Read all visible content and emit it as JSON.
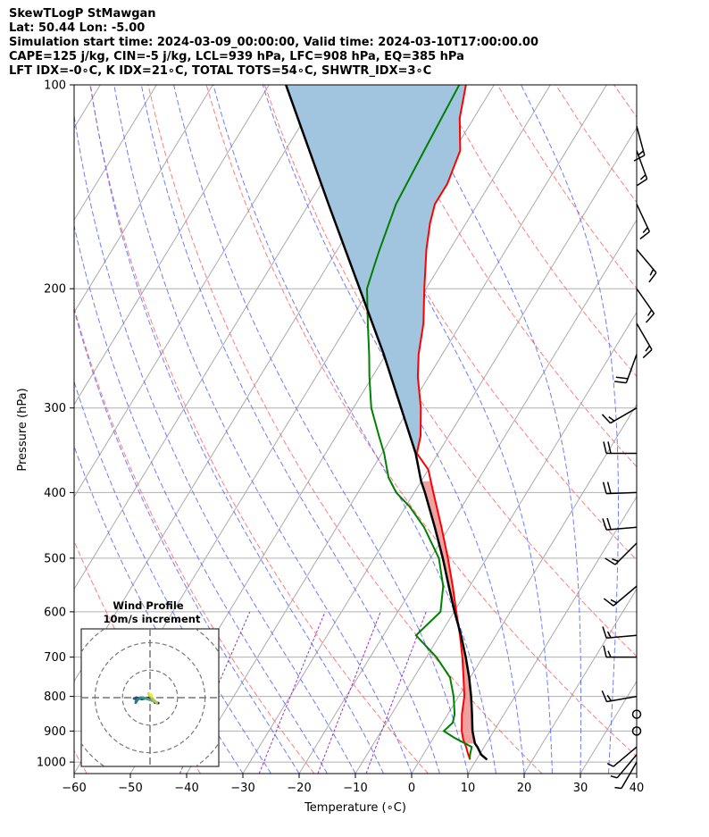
{
  "header": {
    "line1": "SkewTLogP StMawgan",
    "line2": "Lat: 50.44   Lon: -5.00",
    "line3": "Simulation start time: 2024-03-09_00:00:00, Valid time: 2024-03-10T17:00:00.00",
    "line4": "CAPE=125 j/kg, CIN=-5 j/kg, LCL=939 hPa, LFC=908 hPa, EQ=385 hPa",
    "line5": "LFT IDX=-0∘C, K IDX=21∘C, TOTAL TOTS=54∘C, SHWTR_IDX=3∘C"
  },
  "colors": {
    "temperature": "#ff0000",
    "dewpoint": "#008000",
    "parcel": "#000000",
    "cape_fill": "#a2c5df",
    "cin_fill": "#f0a0a0",
    "dry_adiabat": "#ff6666",
    "moist_adiabat": "#5566ff",
    "mixing_ratio": "#9933cc",
    "isotherm": "#aaaaaa"
  },
  "chart_data": {
    "type": "line",
    "subtype": "skew-t log-p",
    "xlabel": "Temperature (∘C)",
    "ylabel": "Pressure (hPa)",
    "xlim": [
      -60,
      40
    ],
    "ylim": [
      1040,
      100
    ],
    "x_ticks": [
      "−60",
      "−50",
      "−40",
      "−30",
      "−20",
      "−10",
      "0",
      "10",
      "20",
      "30",
      "40"
    ],
    "y_ticks": [
      {
        "p": 1000,
        "label": "1000"
      },
      {
        "p": 900,
        "label": "900"
      },
      {
        "p": 800,
        "label": "800"
      },
      {
        "p": 700,
        "label": "700"
      },
      {
        "p": 600,
        "label": "600"
      },
      {
        "p": 500,
        "label": "500"
      },
      {
        "p": 400,
        "label": "400"
      },
      {
        "p": 300,
        "label": "300"
      },
      {
        "p": 200,
        "label": "200"
      },
      {
        "p": 100,
        "label": "100"
      }
    ],
    "series": [
      {
        "name": "Temperature",
        "points": [
          [
            992,
            8.9
          ],
          [
            975,
            8.0
          ],
          [
            950,
            6.8
          ],
          [
            925,
            5.4
          ],
          [
            900,
            4.3
          ],
          [
            850,
            2.5
          ],
          [
            800,
            1.0
          ],
          [
            750,
            -1.2
          ],
          [
            700,
            -3.6
          ],
          [
            650,
            -6.4
          ],
          [
            600,
            -9.6
          ],
          [
            550,
            -13.0
          ],
          [
            500,
            -16.9
          ],
          [
            450,
            -21.4
          ],
          [
            400,
            -26.6
          ],
          [
            370,
            -30.0
          ],
          [
            350,
            -33.8
          ],
          [
            330,
            -35.0
          ],
          [
            300,
            -38.0
          ],
          [
            270,
            -41.9
          ],
          [
            250,
            -44.2
          ],
          [
            225,
            -46.7
          ],
          [
            200,
            -50.3
          ],
          [
            175,
            -54.2
          ],
          [
            160,
            -56.4
          ],
          [
            150,
            -57.6
          ],
          [
            140,
            -57.6
          ],
          [
            125,
            -58.9
          ],
          [
            112,
            -62.5
          ],
          [
            100,
            -65.0
          ]
        ]
      },
      {
        "name": "Dewpoint",
        "points": [
          [
            990,
            8.7
          ],
          [
            970,
            8.2
          ],
          [
            950,
            7.8
          ],
          [
            920,
            3.6
          ],
          [
            900,
            1.1
          ],
          [
            875,
            1.8
          ],
          [
            850,
            1.2
          ],
          [
            800,
            -0.9
          ],
          [
            750,
            -3.6
          ],
          [
            700,
            -8.2
          ],
          [
            650,
            -14.2
          ],
          [
            600,
            -12.4
          ],
          [
            550,
            -14.7
          ],
          [
            500,
            -18.5
          ],
          [
            450,
            -24.5
          ],
          [
            420,
            -29.2
          ],
          [
            400,
            -33.2
          ],
          [
            380,
            -36.2
          ],
          [
            350,
            -39.6
          ],
          [
            330,
            -42.4
          ],
          [
            300,
            -46.8
          ],
          [
            270,
            -50.5
          ],
          [
            250,
            -53.0
          ],
          [
            225,
            -56.6
          ],
          [
            200,
            -60.5
          ],
          [
            185,
            -61.7
          ],
          [
            175,
            -62.5
          ],
          [
            150,
            -64.5
          ],
          [
            125,
            -65.3
          ],
          [
            100,
            -66.2
          ]
        ]
      },
      {
        "name": "Parcel",
        "points": [
          [
            992,
            11.9
          ],
          [
            975,
            10.3
          ],
          [
            950,
            8.8
          ],
          [
            939,
            8.0
          ],
          [
            900,
            6.2
          ],
          [
            850,
            4.3
          ],
          [
            800,
            2.2
          ],
          [
            750,
            -0.2
          ],
          [
            700,
            -3.0
          ],
          [
            650,
            -6.2
          ],
          [
            600,
            -9.9
          ],
          [
            550,
            -13.7
          ],
          [
            500,
            -17.8
          ],
          [
            450,
            -22.6
          ],
          [
            400,
            -28.1
          ],
          [
            385,
            -30.0
          ],
          [
            350,
            -34.0
          ],
          [
            300,
            -41.5
          ],
          [
            250,
            -50.4
          ],
          [
            200,
            -61.8
          ],
          [
            150,
            -76.5
          ],
          [
            100,
            -97.0
          ]
        ]
      }
    ],
    "cape_region": {
      "p_bottom": 908,
      "p_top": 385
    },
    "upper_cape_region": {
      "p_bottom": 350,
      "p_top": 100
    },
    "cin_region": {
      "p_bottom": 939,
      "p_top": 908
    },
    "wind_barbs": [
      {
        "p": 1000,
        "speed": 5,
        "dir": 210
      },
      {
        "p": 975,
        "speed": 5,
        "dir": 220
      },
      {
        "p": 950,
        "speed": 5,
        "dir": 230
      },
      {
        "p": 900,
        "speed": 0,
        "dir": 0
      },
      {
        "p": 850,
        "speed": 0,
        "dir": 0
      },
      {
        "p": 800,
        "speed": 15,
        "dir": 260
      },
      {
        "p": 700,
        "speed": 15,
        "dir": 270
      },
      {
        "p": 650,
        "speed": 15,
        "dir": 265
      },
      {
        "p": 550,
        "speed": 15,
        "dir": 230
      },
      {
        "p": 475,
        "speed": 15,
        "dir": 225
      },
      {
        "p": 450,
        "speed": 20,
        "dir": 265
      },
      {
        "p": 400,
        "speed": 20,
        "dir": 268
      },
      {
        "p": 350,
        "speed": 20,
        "dir": 270
      },
      {
        "p": 300,
        "speed": 15,
        "dir": 240
      },
      {
        "p": 250,
        "speed": 20,
        "dir": 200
      },
      {
        "p": 225,
        "speed": 15,
        "dir": 150
      },
      {
        "p": 200,
        "speed": 15,
        "dir": 145
      },
      {
        "p": 175,
        "speed": 15,
        "dir": 140
      },
      {
        "p": 150,
        "speed": 15,
        "dir": 155
      },
      {
        "p": 125,
        "speed": 15,
        "dir": 160
      },
      {
        "p": 115,
        "speed": 15,
        "dir": 165
      }
    ],
    "hodograph": {
      "title": "Wind Profile",
      "subtitle": "10m/s increment",
      "rings_ms": [
        10,
        20,
        30
      ],
      "axis_range_ms": 25,
      "trace": [
        [
          3,
          -2
        ],
        [
          1.8,
          -1.8
        ],
        [
          1.5,
          -1.3
        ],
        [
          0,
          0
        ],
        [
          -3,
          -0.5
        ],
        [
          -5,
          0
        ],
        [
          -5.8,
          -0.3
        ],
        [
          -4.5,
          -0.6
        ],
        [
          -5,
          -1
        ],
        [
          -5.2,
          -1.8
        ],
        [
          -4.5,
          -0.8
        ],
        [
          -3.5,
          0
        ],
        [
          -2.5,
          0
        ],
        [
          -1,
          -0.5
        ],
        [
          0.5,
          -1
        ],
        [
          2,
          -1.5
        ],
        [
          2.5,
          -2
        ],
        [
          2.2,
          -1.8
        ],
        [
          -0.2,
          0.8
        ],
        [
          -0.5,
          1.5
        ],
        [
          0.4,
          1
        ],
        [
          0.6,
          0.6
        ],
        [
          0.1,
          1.3
        ]
      ]
    }
  }
}
